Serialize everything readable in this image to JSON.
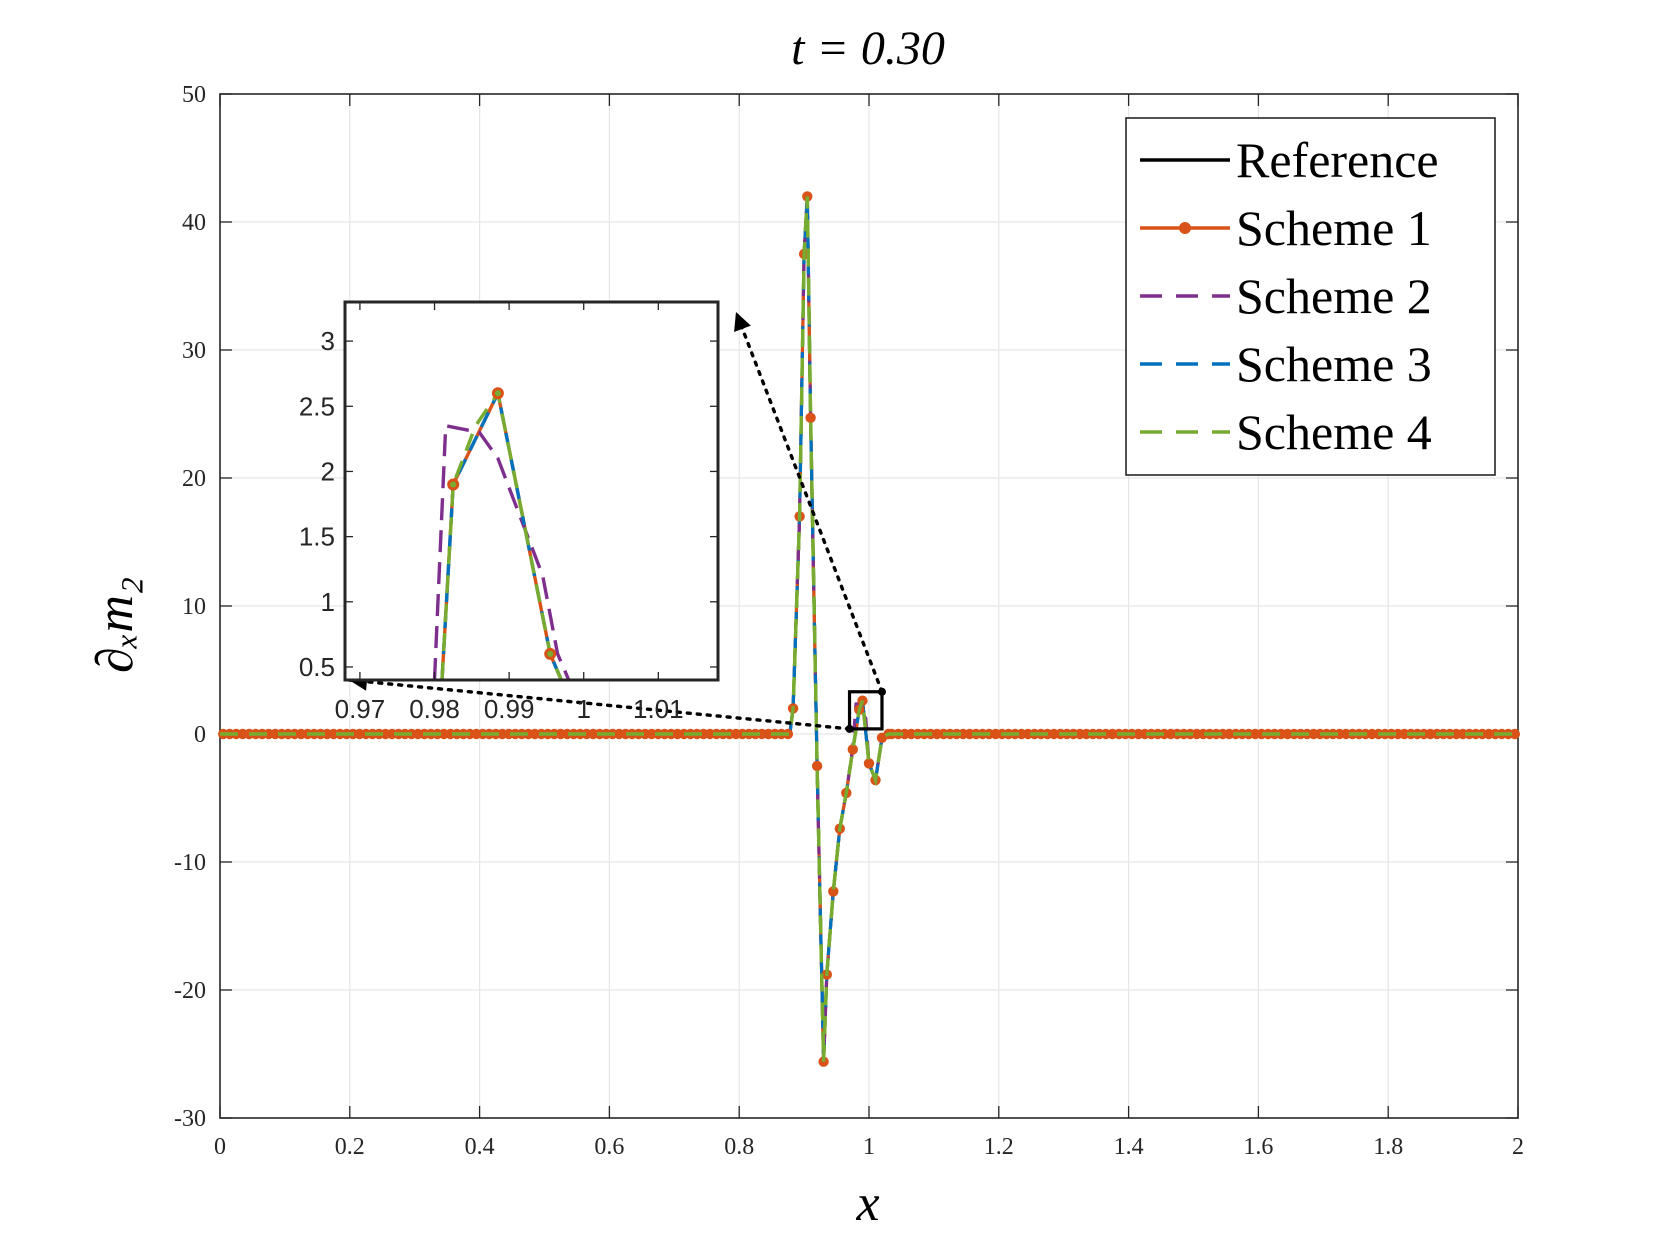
{
  "chart_data": {
    "type": "line",
    "title": "t = 0.30",
    "xlabel": "x",
    "ylabel": "∂ₓm₂",
    "xlim": [
      0,
      2
    ],
    "ylim": [
      -30,
      50
    ],
    "xticks": [
      0,
      0.2,
      0.4,
      0.6,
      0.8,
      1,
      1.2,
      1.4,
      1.6,
      1.8,
      2
    ],
    "xtick_labels": [
      "0",
      "0.2",
      "0.4",
      "0.6",
      "0.8",
      "1",
      "1.2",
      "1.4",
      "1.6",
      "1.8",
      "2"
    ],
    "yticks": [
      -30,
      -20,
      -10,
      0,
      10,
      20,
      30,
      40,
      50
    ],
    "ytick_labels": [
      "-30",
      "-20",
      "-10",
      "0",
      "10",
      "20",
      "30",
      "40",
      "50"
    ],
    "grid": true,
    "legend_position": "top-right",
    "colors": {
      "reference": "#000000",
      "scheme1": "#D95319",
      "scheme2": "#7E2F8E",
      "scheme3": "#0072BD",
      "scheme4": "#77AC30"
    },
    "series": [
      {
        "name": "Reference",
        "style": "solid",
        "x": [
          0,
          0.878,
          0.883,
          0.893,
          0.9,
          0.905,
          0.91,
          0.92,
          0.93,
          0.935,
          0.945,
          0.955,
          0.965,
          0.975,
          0.985,
          0.99,
          1.0,
          1.01,
          1.02,
          1.03,
          2
        ],
        "y": [
          0,
          0,
          2,
          17,
          37.5,
          42,
          24.7,
          -2.5,
          -25.6,
          -18.8,
          -12.3,
          -7.4,
          -4.6,
          -1.2,
          1.9,
          2.6,
          -2.3,
          -3.6,
          -0.3,
          0,
          0
        ]
      },
      {
        "name": "Scheme 1",
        "style": "solid-markers",
        "x": [
          0,
          0.878,
          0.883,
          0.893,
          0.9,
          0.905,
          0.91,
          0.92,
          0.93,
          0.935,
          0.945,
          0.955,
          0.965,
          0.975,
          0.985,
          0.99,
          1.0,
          1.01,
          1.02,
          1.03,
          2
        ],
        "y": [
          0,
          0,
          2,
          17,
          37.5,
          42,
          24.7,
          -2.5,
          -25.6,
          -18.8,
          -12.3,
          -7.4,
          -4.6,
          -1.2,
          1.9,
          2.6,
          -2.3,
          -3.6,
          -0.3,
          0,
          0
        ]
      },
      {
        "name": "Scheme 2",
        "style": "dashed",
        "x": [
          0,
          0.878,
          0.883,
          0.893,
          0.9,
          0.905,
          0.91,
          0.92,
          0.93,
          0.935,
          0.945,
          0.955,
          0.965,
          0.975,
          0.98,
          0.99,
          0.995,
          1.0,
          1.01,
          1.02,
          1.03,
          2
        ],
        "y": [
          0,
          0,
          2,
          17,
          37.5,
          42,
          24.7,
          -2.5,
          -25.6,
          -18.8,
          -12.3,
          -7.4,
          -4.6,
          -1.0,
          2.35,
          2.3,
          1.2,
          -2.3,
          -3.6,
          -0.3,
          0,
          0
        ]
      },
      {
        "name": "Scheme 3",
        "style": "dashed",
        "x": [
          0,
          0.878,
          0.883,
          0.893,
          0.9,
          0.905,
          0.91,
          0.92,
          0.93,
          0.935,
          0.945,
          0.955,
          0.965,
          0.975,
          0.985,
          0.99,
          1.0,
          1.01,
          1.02,
          1.03,
          2
        ],
        "y": [
          0,
          0,
          2,
          17,
          37.5,
          42,
          24.7,
          -2.5,
          -25.6,
          -18.8,
          -12.3,
          -7.4,
          -4.6,
          -1.2,
          1.9,
          2.6,
          -2.3,
          -3.6,
          -0.3,
          0,
          0
        ]
      },
      {
        "name": "Scheme 4",
        "style": "dashed",
        "x": [
          0,
          0.878,
          0.883,
          0.893,
          0.9,
          0.905,
          0.91,
          0.92,
          0.93,
          0.935,
          0.945,
          0.955,
          0.965,
          0.975,
          0.985,
          0.99,
          1.0,
          1.01,
          1.02,
          1.03,
          2
        ],
        "y": [
          0,
          0,
          2,
          17,
          37.5,
          42,
          24.7,
          -2.5,
          -25.6,
          -18.8,
          -12.3,
          -7.4,
          -4.6,
          -1.2,
          1.9,
          2.6,
          -2.3,
          -3.6,
          -0.3,
          0,
          0
        ]
      }
    ],
    "inset": {
      "xlim": [
        0.968,
        1.018
      ],
      "ylim": [
        0.4,
        3.3
      ],
      "xticks": [
        0.97,
        0.98,
        0.99,
        1,
        1.01
      ],
      "xtick_labels": [
        "0.97",
        "0.98",
        "0.99",
        "1",
        "1.01"
      ],
      "yticks": [
        0.5,
        1,
        1.5,
        2,
        2.5,
        3
      ],
      "ytick_labels": [
        "0.5",
        "1",
        "1.5",
        "2",
        "2.5",
        "3"
      ],
      "series": [
        {
          "name": "Scheme 1",
          "x": [
            0.981,
            0.9825,
            0.9885,
            0.9955,
            0.997
          ],
          "y": [
            0.4,
            1.9,
            2.6,
            0.6,
            0.4
          ]
        },
        {
          "name": "Scheme 2",
          "x": [
            0.98,
            0.9815,
            0.986,
            0.9885,
            0.9945,
            0.9965,
            0.998
          ],
          "y": [
            0.4,
            2.35,
            2.3,
            2.1,
            1.2,
            0.6,
            0.4
          ]
        },
        {
          "name": "Scheme 3",
          "x": [
            0.981,
            0.9825,
            0.9885,
            0.9955,
            0.997
          ],
          "y": [
            0.4,
            1.9,
            2.6,
            0.6,
            0.4
          ]
        },
        {
          "name": "Scheme 4",
          "x": [
            0.981,
            0.9825,
            0.9855,
            0.9885,
            0.9955,
            0.997
          ],
          "y": [
            0.4,
            1.9,
            2.35,
            2.6,
            0.6,
            0.4
          ]
        }
      ],
      "markers": {
        "x": [
          0.9825,
          0.9885,
          0.9955
        ],
        "y": [
          1.9,
          2.6,
          0.6
        ]
      },
      "zoom_box": {
        "xlim": [
          0.97,
          1.02
        ],
        "ylim": [
          0.4,
          3.3
        ]
      }
    }
  }
}
